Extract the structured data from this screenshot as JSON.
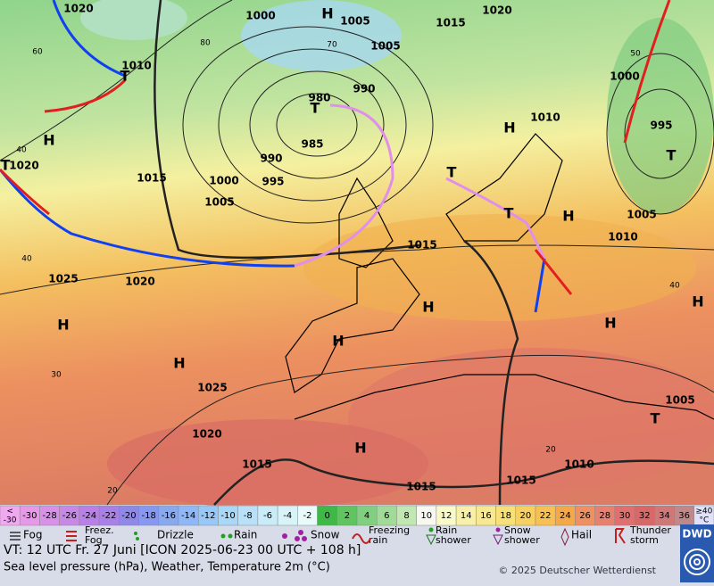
{
  "map": {
    "isobar_labels": [
      "1020",
      "1000",
      "1005",
      "1015",
      "1020",
      "1010",
      "1005",
      "990",
      "980",
      "985",
      "990",
      "995",
      "1000",
      "1005",
      "1015",
      "1020",
      "1010",
      "1000",
      "995",
      "1005",
      "1010",
      "1015",
      "1025",
      "1020",
      "1025",
      "1020",
      "1015",
      "1015",
      "1015",
      "1010",
      "1005"
    ],
    "temperature_labels": [
      "60",
      "80",
      "70",
      "50",
      "40",
      "40",
      "30",
      "20",
      "20",
      "40"
    ],
    "centers": [
      "H",
      "H",
      "H",
      "H",
      "H",
      "H",
      "H",
      "H",
      "H",
      "H",
      "H",
      "T",
      "T",
      "T",
      "T",
      "T",
      "T",
      "T"
    ]
  },
  "color_scale": [
    {
      "top": "<",
      "label": "-30",
      "color": "#f0a8f0"
    },
    {
      "label": "-30",
      "color": "#e898e8"
    },
    {
      "label": "-28",
      "color": "#d890e8"
    },
    {
      "label": "-26",
      "color": "#c888e8"
    },
    {
      "label": "-24",
      "color": "#b880e8"
    },
    {
      "label": "-22",
      "color": "#a880e8"
    },
    {
      "label": "-20",
      "color": "#9088e8"
    },
    {
      "label": "-18",
      "color": "#8898f0"
    },
    {
      "label": "-16",
      "color": "#88a8f0"
    },
    {
      "label": "-14",
      "color": "#90b8f8"
    },
    {
      "label": "-12",
      "color": "#98c8f8"
    },
    {
      "label": "-10",
      "color": "#a8d8f8"
    },
    {
      "label": "-8",
      "color": "#b8e0f8"
    },
    {
      "label": "-6",
      "color": "#c8ecf8"
    },
    {
      "label": "-4",
      "color": "#d8f4f8"
    },
    {
      "label": "-2",
      "color": "#e8fafa"
    },
    {
      "label": "0",
      "color": "#40b848"
    },
    {
      "label": "2",
      "color": "#60c460"
    },
    {
      "label": "4",
      "color": "#80d080"
    },
    {
      "label": "6",
      "color": "#a0dc98"
    },
    {
      "label": "8",
      "color": "#c0e8b0"
    },
    {
      "label": "10",
      "color": "#f8f8f0"
    },
    {
      "label": "12",
      "color": "#fafac8"
    },
    {
      "label": "14",
      "color": "#f8f0a8"
    },
    {
      "label": "16",
      "color": "#f8e890"
    },
    {
      "label": "18",
      "color": "#f8e078"
    },
    {
      "label": "20",
      "color": "#f8d060"
    },
    {
      "label": "22",
      "color": "#f8c050"
    },
    {
      "label": "24",
      "color": "#f4a848"
    },
    {
      "label": "26",
      "color": "#f09060"
    },
    {
      "label": "28",
      "color": "#e88070"
    },
    {
      "label": "30",
      "color": "#e07070"
    },
    {
      "label": "32",
      "color": "#d86868"
    },
    {
      "label": "34",
      "color": "#d07878"
    },
    {
      "label": "36",
      "color": "#c08888"
    },
    {
      "top": "≥40",
      "label": "°C",
      "color": "#e0e0f8"
    }
  ],
  "legend": [
    "Fog",
    "Freez. Fog",
    "Drizzle",
    "Rain",
    "Snow",
    "Freezing rain",
    "Rain shower",
    "Snow shower",
    "Hail",
    "Thunder storm"
  ],
  "footer": {
    "valid_time": "VT: 12 UTC Fr.  27 Juni [ICON 2025-06-23  00 UTC + 108 h]",
    "description": "Sea level pressure (hPa), Weather, Temperature 2m (°C)",
    "copyright": "© 2025 Deutscher Wetterdienst",
    "logo": "DWD"
  }
}
